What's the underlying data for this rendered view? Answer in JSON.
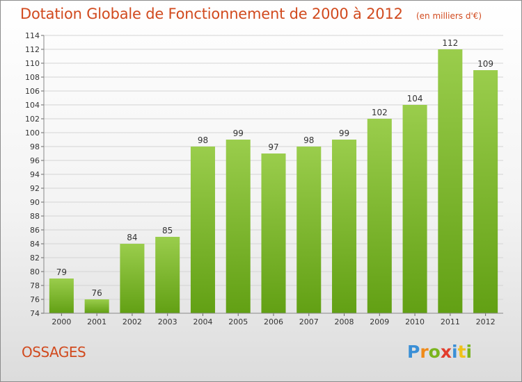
{
  "header": {
    "title": "Dotation Globale de Fonctionnement de 2000 à 2012",
    "unit": "(en milliers d'€)"
  },
  "footer": {
    "commune": "OSSAGES",
    "logo_text": "Proxiti"
  },
  "colors": {
    "title": "#d14a1e",
    "bar_light": "#9acd4c",
    "bar_dark": "#62a014"
  },
  "chart_data": {
    "type": "bar",
    "title": "Dotation Globale de Fonctionnement de 2000 à 2012",
    "subtitle": "(en milliers d'€)",
    "categories": [
      "2000",
      "2001",
      "2002",
      "2003",
      "2004",
      "2005",
      "2006",
      "2007",
      "2008",
      "2009",
      "2010",
      "2011",
      "2012"
    ],
    "values": [
      79,
      76,
      84,
      85,
      98,
      99,
      97,
      98,
      99,
      102,
      104,
      112,
      109
    ],
    "ylim": [
      74,
      114
    ],
    "yticks": [
      74,
      76,
      78,
      80,
      82,
      84,
      86,
      88,
      90,
      92,
      94,
      96,
      98,
      100,
      102,
      104,
      106,
      108,
      110,
      112,
      114
    ],
    "grid": true,
    "legend": "none"
  }
}
